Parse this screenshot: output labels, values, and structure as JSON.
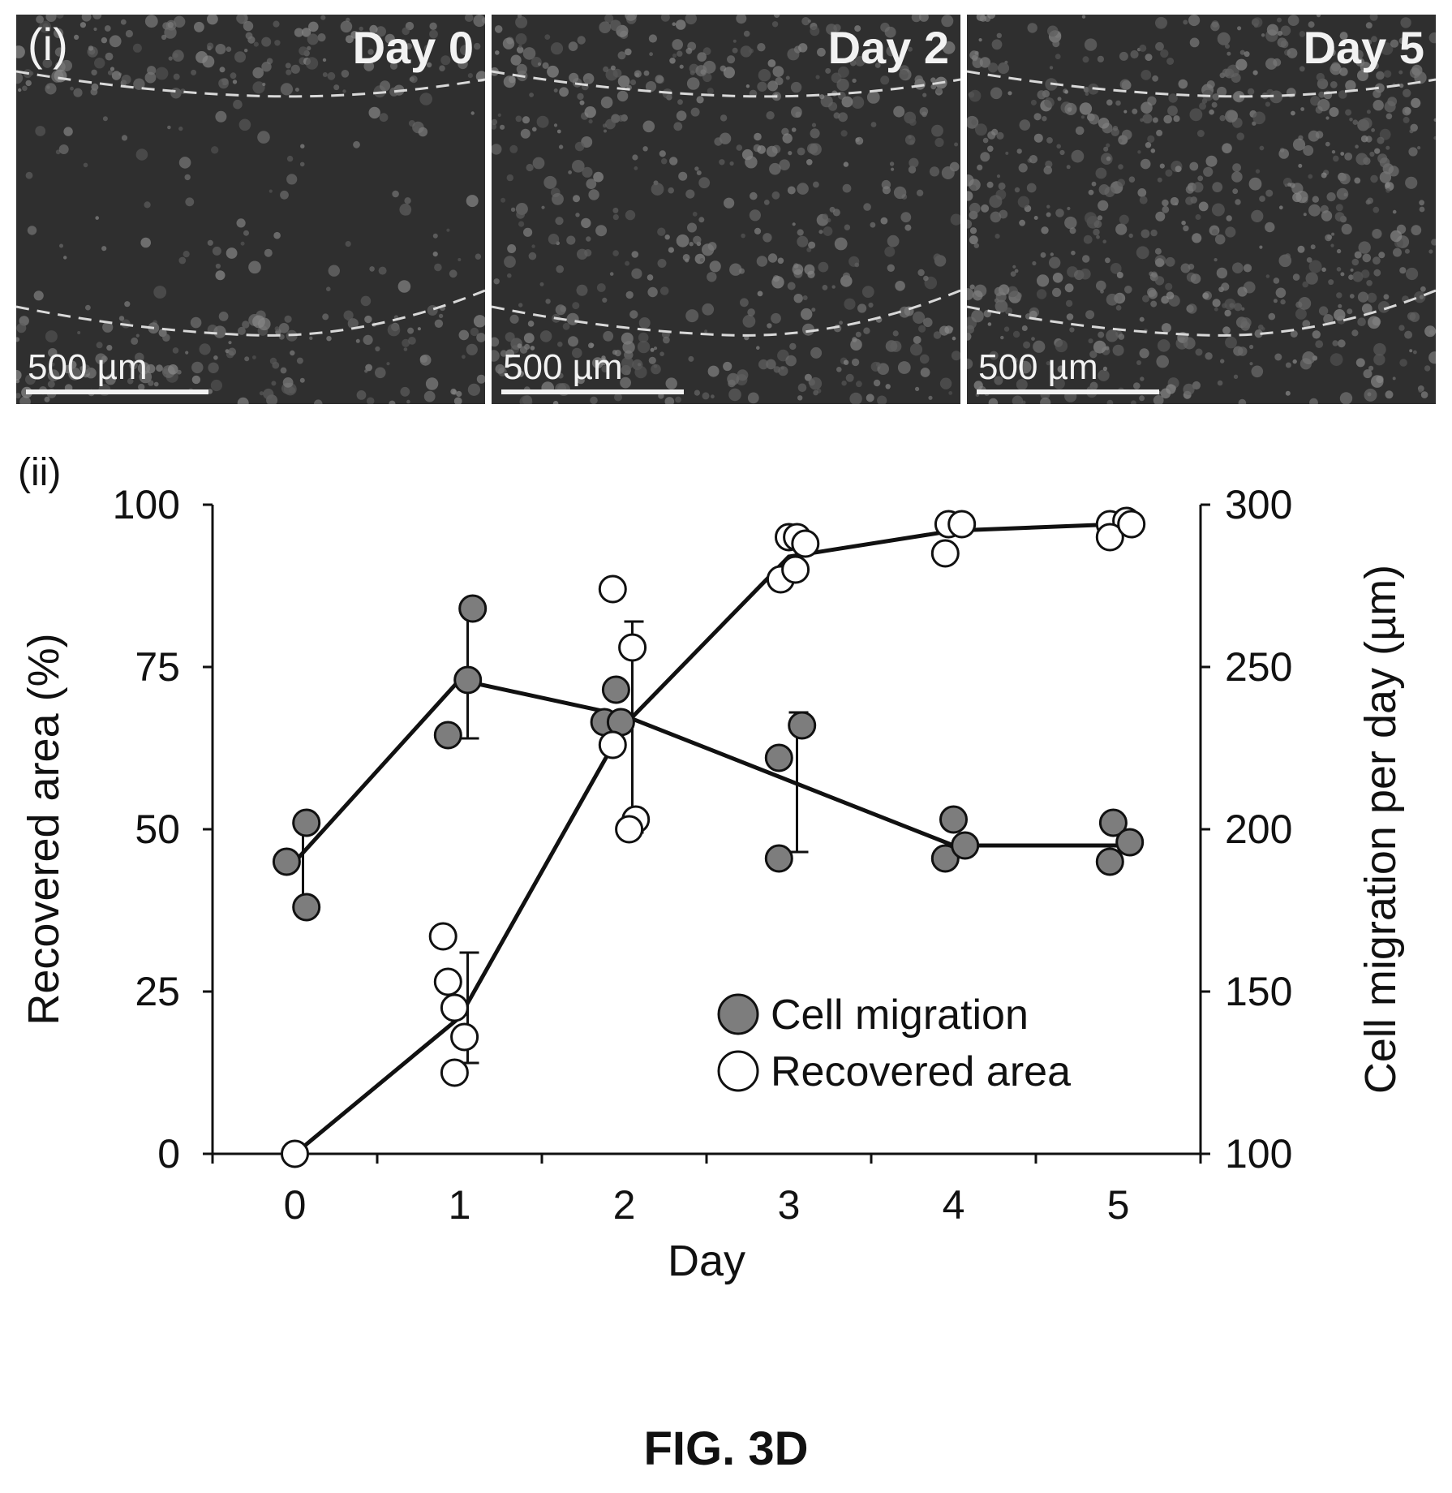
{
  "figure_label": "FIG. 3D",
  "micrographs": {
    "panel_tag": "(i)",
    "scale_bar_label": "500 µm",
    "panels": [
      {
        "day_label": "Day 0",
        "brightness": 0.15
      },
      {
        "day_label": "Day 2",
        "brightness": 0.55
      },
      {
        "day_label": "Day 5",
        "brightness": 0.85
      }
    ]
  },
  "chart_data": {
    "type": "scatter",
    "panel_tag": "(ii)",
    "xlabel": "Day",
    "ylabel_left": "Recovered area (%)",
    "ylabel_right": "Cell migration per day (µm)",
    "xlim": [
      -0.5,
      5.5
    ],
    "ylim_left": [
      0,
      100
    ],
    "ylim_right": [
      100,
      300
    ],
    "x_ticks": [
      0,
      1,
      2,
      3,
      4,
      5
    ],
    "y_ticks_left": [
      0,
      25,
      50,
      75,
      100
    ],
    "y_ticks_right": [
      100,
      150,
      200,
      250,
      300
    ],
    "grid": false,
    "legend_position": "bottom-right",
    "legend": [
      {
        "label": "Cell migration",
        "marker": "filled"
      },
      {
        "label": "Recovered area",
        "marker": "open"
      }
    ],
    "series": [
      {
        "name": "Cell migration",
        "axis": "right",
        "marker": "filled",
        "color": "#7d7d7d",
        "mean": [
          {
            "x": 0,
            "y": 190
          },
          {
            "x": 1,
            "y": 246
          },
          {
            "x": 2,
            "y": 235
          },
          {
            "x": 3,
            "y": 215
          },
          {
            "x": 4,
            "y": 195
          },
          {
            "x": 5,
            "y": 195
          }
        ],
        "error": [
          {
            "x": 0,
            "low": 176,
            "high": 203
          },
          {
            "x": 1,
            "low": 228,
            "high": 267
          },
          {
            "x": 2,
            "low": 199,
            "high": 264
          },
          {
            "x": 3,
            "low": 193,
            "high": 236
          },
          {
            "x": 4,
            "low": 195,
            "high": 195
          },
          {
            "x": 5,
            "low": 195,
            "high": 195
          }
        ],
        "points": [
          {
            "x": -0.05,
            "y": 190
          },
          {
            "x": 0.07,
            "y": 202
          },
          {
            "x": 0.07,
            "y": 176
          },
          {
            "x": 0.93,
            "y": 229
          },
          {
            "x": 1.05,
            "y": 246
          },
          {
            "x": 1.08,
            "y": 268
          },
          {
            "x": 1.95,
            "y": 243
          },
          {
            "x": 1.88,
            "y": 233
          },
          {
            "x": 1.98,
            "y": 233
          },
          {
            "x": 2.94,
            "y": 222
          },
          {
            "x": 3.08,
            "y": 232
          },
          {
            "x": 2.94,
            "y": 191
          },
          {
            "x": 3.95,
            "y": 191
          },
          {
            "x": 4.0,
            "y": 203
          },
          {
            "x": 4.07,
            "y": 195
          },
          {
            "x": 4.95,
            "y": 190
          },
          {
            "x": 4.97,
            "y": 202
          },
          {
            "x": 5.07,
            "y": 196
          }
        ]
      },
      {
        "name": "Recovered area",
        "axis": "left",
        "marker": "open",
        "color": "#ffffff",
        "mean": [
          {
            "x": 0,
            "y": 0
          },
          {
            "x": 1,
            "y": 21
          },
          {
            "x": 2,
            "y": 66
          },
          {
            "x": 3,
            "y": 92
          },
          {
            "x": 4,
            "y": 96
          },
          {
            "x": 5,
            "y": 97
          }
        ],
        "error": [
          {
            "x": 0,
            "low": 0,
            "high": 0
          },
          {
            "x": 1,
            "low": 14,
            "high": 31
          },
          {
            "x": 2,
            "low": 50,
            "high": 82
          },
          {
            "x": 3,
            "low": 92,
            "high": 92
          },
          {
            "x": 4,
            "low": 96,
            "high": 96
          },
          {
            "x": 5,
            "low": 97,
            "high": 97
          }
        ],
        "points": [
          {
            "x": 0.0,
            "y": 0
          },
          {
            "x": 0.9,
            "y": 33.5
          },
          {
            "x": 0.93,
            "y": 26.5
          },
          {
            "x": 0.97,
            "y": 22.5
          },
          {
            "x": 1.03,
            "y": 18
          },
          {
            "x": 0.97,
            "y": 12.5
          },
          {
            "x": 1.93,
            "y": 87
          },
          {
            "x": 2.05,
            "y": 78
          },
          {
            "x": 1.93,
            "y": 63
          },
          {
            "x": 2.07,
            "y": 51.5
          },
          {
            "x": 2.03,
            "y": 50
          },
          {
            "x": 3.0,
            "y": 95
          },
          {
            "x": 3.05,
            "y": 95
          },
          {
            "x": 3.1,
            "y": 94
          },
          {
            "x": 2.95,
            "y": 88.5
          },
          {
            "x": 3.04,
            "y": 90
          },
          {
            "x": 3.97,
            "y": 97
          },
          {
            "x": 4.05,
            "y": 97
          },
          {
            "x": 3.95,
            "y": 92.5
          },
          {
            "x": 4.95,
            "y": 97
          },
          {
            "x": 5.05,
            "y": 97.5
          },
          {
            "x": 4.95,
            "y": 95
          },
          {
            "x": 5.08,
            "y": 97
          }
        ]
      }
    ]
  }
}
